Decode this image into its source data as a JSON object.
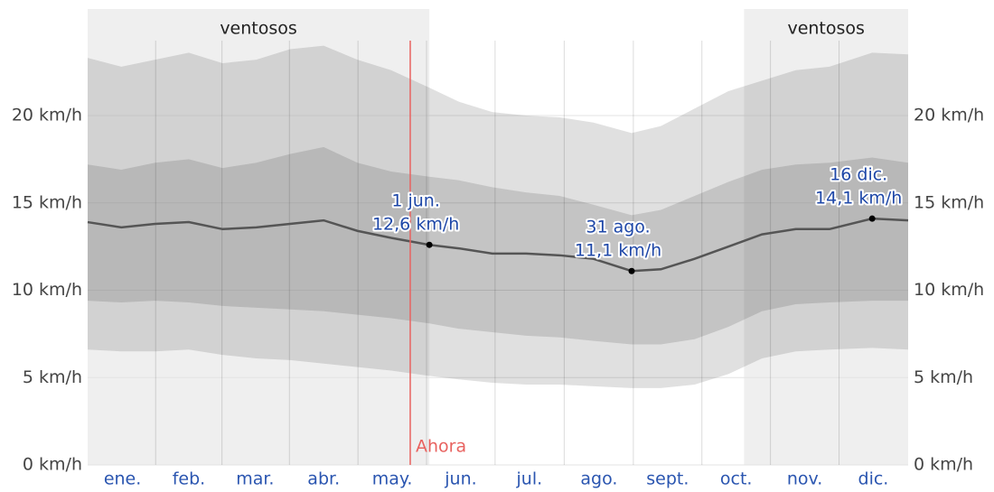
{
  "chart_data": {
    "type": "band-line",
    "x": [
      0,
      15,
      30,
      45,
      60,
      75,
      90,
      105,
      120,
      135,
      152,
      165,
      180,
      195,
      210,
      225,
      242,
      255,
      270,
      285,
      300,
      315,
      330,
      349,
      365
    ],
    "xlim": [
      0,
      365
    ],
    "xticks": [
      {
        "value": 15.5,
        "label": "ene."
      },
      {
        "value": 45,
        "label": "feb."
      },
      {
        "value": 74.5,
        "label": "mar."
      },
      {
        "value": 105,
        "label": "abr."
      },
      {
        "value": 135.5,
        "label": "may."
      },
      {
        "value": 166,
        "label": "jun."
      },
      {
        "value": 196.5,
        "label": "jul."
      },
      {
        "value": 227.5,
        "label": "ago."
      },
      {
        "value": 258,
        "label": "sept."
      },
      {
        "value": 288.5,
        "label": "oct."
      },
      {
        "value": 319,
        "label": "nov."
      },
      {
        "value": 349.5,
        "label": "dic."
      }
    ],
    "ylim": [
      0,
      26.1
    ],
    "yticks": [
      {
        "value": 0,
        "label": "0 km/h"
      },
      {
        "value": 5,
        "label": "5 km/h"
      },
      {
        "value": 10,
        "label": "10 km/h"
      },
      {
        "value": 15,
        "label": "15 km/h"
      },
      {
        "value": 20,
        "label": "20 km/h"
      }
    ],
    "grid": true,
    "bands": [
      {
        "color": "rgba(0,0,0,0.12)",
        "lower": [
          6.6,
          6.5,
          6.5,
          6.6,
          6.3,
          6.1,
          6.0,
          5.8,
          5.6,
          5.4,
          5.1,
          4.9,
          4.7,
          4.6,
          4.6,
          4.5,
          4.4,
          4.4,
          4.6,
          5.2,
          6.1,
          6.5,
          6.6,
          6.7,
          6.6
        ],
        "upper": [
          23.3,
          22.8,
          23.2,
          23.6,
          23.0,
          23.2,
          23.8,
          24.0,
          23.2,
          22.6,
          21.6,
          20.8,
          20.2,
          20.0,
          19.9,
          19.6,
          19.0,
          19.4,
          20.4,
          21.4,
          22.0,
          22.6,
          22.8,
          23.6,
          23.5
        ]
      },
      {
        "color": "rgba(0,0,0,0.12)",
        "lower": [
          9.4,
          9.3,
          9.4,
          9.3,
          9.1,
          9.0,
          8.9,
          8.8,
          8.6,
          8.4,
          8.1,
          7.8,
          7.6,
          7.4,
          7.3,
          7.1,
          6.9,
          6.9,
          7.2,
          7.9,
          8.8,
          9.2,
          9.3,
          9.4,
          9.4
        ],
        "upper": [
          17.2,
          16.9,
          17.3,
          17.5,
          17.0,
          17.3,
          17.8,
          18.2,
          17.3,
          16.8,
          16.5,
          16.3,
          15.9,
          15.6,
          15.4,
          14.9,
          14.3,
          14.6,
          15.4,
          16.2,
          16.9,
          17.2,
          17.3,
          17.6,
          17.3
        ]
      }
    ],
    "line": {
      "color": "#555555",
      "values": [
        13.9,
        13.6,
        13.8,
        13.9,
        13.5,
        13.6,
        13.8,
        14.0,
        13.4,
        13.0,
        12.6,
        12.4,
        12.1,
        12.1,
        12.0,
        11.8,
        11.1,
        11.2,
        11.8,
        12.5,
        13.2,
        13.5,
        13.5,
        14.1,
        14.0
      ]
    },
    "highlights": [
      {
        "start": 0,
        "end": 152,
        "label": "ventosos"
      },
      {
        "start": 292,
        "end": 365,
        "label": "ventosos"
      }
    ],
    "now": {
      "x": 143.5,
      "label": "Ahora",
      "color": "#e8625f"
    },
    "annotations": [
      {
        "x": 152,
        "label": "1 jun.",
        "value": 12.6,
        "value_label": "12,6 km/h"
      },
      {
        "x": 242,
        "label": "31 ago.",
        "value": 11.1,
        "value_label": "11,1 km/h"
      },
      {
        "x": 349,
        "label": "16 dic.",
        "value": 14.1,
        "value_label": "14,1 km/h"
      }
    ]
  }
}
